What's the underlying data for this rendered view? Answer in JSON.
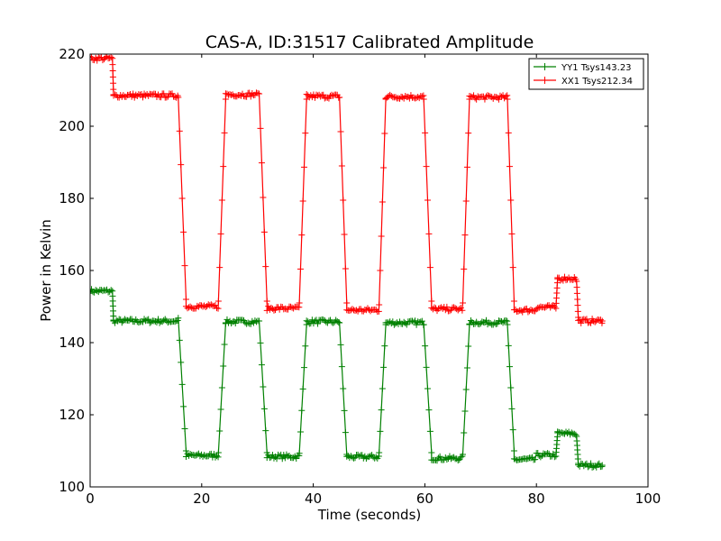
{
  "chart_data": {
    "type": "line",
    "title": "CAS-A, ID:31517 Calibrated Amplitude",
    "xlabel": "Time (seconds)",
    "ylabel": "Power in Kelvin",
    "xlim": [
      0,
      100
    ],
    "ylim": [
      100,
      220
    ],
    "xticks": [
      0,
      20,
      40,
      60,
      80,
      100
    ],
    "yticks": [
      100,
      120,
      140,
      160,
      180,
      200,
      220
    ],
    "grid": false,
    "legend_position": "top-right",
    "marker": "plus",
    "series": [
      {
        "name": "YY1 Tsys143.23",
        "color": "#008000",
        "segments": [
          {
            "x_start": 0.0,
            "x_end": 4.0,
            "level": 154.3,
            "noise": 0.6
          },
          {
            "x_start": 4.0,
            "x_end": 4.2,
            "y_start": 154.3,
            "y_end": 146.0
          },
          {
            "x_start": 4.2,
            "x_end": 15.8,
            "level": 146.0,
            "noise": 0.6
          },
          {
            "x_start": 15.8,
            "x_end": 17.2,
            "y_start": 146.8,
            "y_end": 110.0
          },
          {
            "x_start": 17.2,
            "x_end": 23.0,
            "level": 108.7,
            "noise": 0.6
          },
          {
            "x_start": 23.0,
            "x_end": 24.3,
            "y_start": 109.5,
            "y_end": 145.5
          },
          {
            "x_start": 24.3,
            "x_end": 30.3,
            "level": 145.8,
            "noise": 0.6
          },
          {
            "x_start": 30.3,
            "x_end": 31.7,
            "y_start": 146.0,
            "y_end": 109.5
          },
          {
            "x_start": 31.7,
            "x_end": 37.5,
            "level": 108.4,
            "noise": 0.6
          },
          {
            "x_start": 37.5,
            "x_end": 38.8,
            "y_start": 109.3,
            "y_end": 145.0
          },
          {
            "x_start": 38.8,
            "x_end": 44.7,
            "level": 145.8,
            "noise": 0.6
          },
          {
            "x_start": 44.7,
            "x_end": 46.0,
            "y_start": 145.5,
            "y_end": 109.0
          },
          {
            "x_start": 46.0,
            "x_end": 51.8,
            "level": 108.3,
            "noise": 0.6
          },
          {
            "x_start": 51.8,
            "x_end": 53.0,
            "y_start": 109.5,
            "y_end": 145.0
          },
          {
            "x_start": 53.0,
            "x_end": 59.8,
            "level": 145.5,
            "noise": 0.6
          },
          {
            "x_start": 59.8,
            "x_end": 61.2,
            "y_start": 145.0,
            "y_end": 109.5
          },
          {
            "x_start": 61.2,
            "x_end": 66.8,
            "level": 107.9,
            "noise": 0.6
          },
          {
            "x_start": 66.8,
            "x_end": 68.0,
            "y_start": 109.0,
            "y_end": 145.0
          },
          {
            "x_start": 68.0,
            "x_end": 74.8,
            "level": 145.6,
            "noise": 0.6
          },
          {
            "x_start": 74.8,
            "x_end": 76.0,
            "y_start": 145.0,
            "y_end": 110.0
          },
          {
            "x_start": 76.0,
            "x_end": 80.0,
            "level": 107.6,
            "noise": 0.6
          },
          {
            "x_start": 80.0,
            "x_end": 83.5,
            "level": 108.8,
            "noise": 0.6
          },
          {
            "x_start": 83.5,
            "x_end": 83.8,
            "y_start": 108.5,
            "y_end": 115.0
          },
          {
            "x_start": 83.8,
            "x_end": 87.2,
            "level": 114.8,
            "noise": 0.6
          },
          {
            "x_start": 87.2,
            "x_end": 87.5,
            "y_start": 114.0,
            "y_end": 106.5
          },
          {
            "x_start": 87.5,
            "x_end": 91.8,
            "level": 106.0,
            "noise": 0.6
          }
        ]
      },
      {
        "name": "XX1 Tsys212.34",
        "color": "#ff0000",
        "segments": [
          {
            "x_start": 0.0,
            "x_end": 4.0,
            "level": 218.8,
            "noise": 0.6
          },
          {
            "x_start": 4.0,
            "x_end": 4.2,
            "y_start": 218.8,
            "y_end": 208.5
          },
          {
            "x_start": 4.2,
            "x_end": 15.8,
            "level": 208.5,
            "noise": 0.6
          },
          {
            "x_start": 15.8,
            "x_end": 17.2,
            "y_start": 208.0,
            "y_end": 152.0
          },
          {
            "x_start": 17.2,
            "x_end": 23.0,
            "level": 150.0,
            "noise": 0.6
          },
          {
            "x_start": 23.0,
            "x_end": 24.3,
            "y_start": 151.5,
            "y_end": 207.5
          },
          {
            "x_start": 24.3,
            "x_end": 30.3,
            "level": 208.8,
            "noise": 0.6
          },
          {
            "x_start": 30.3,
            "x_end": 31.7,
            "y_start": 209.0,
            "y_end": 151.5
          },
          {
            "x_start": 31.7,
            "x_end": 37.5,
            "level": 149.5,
            "noise": 0.6
          },
          {
            "x_start": 37.5,
            "x_end": 38.8,
            "y_start": 151.0,
            "y_end": 207.5
          },
          {
            "x_start": 38.8,
            "x_end": 44.7,
            "level": 208.3,
            "noise": 0.6
          },
          {
            "x_start": 44.7,
            "x_end": 46.0,
            "y_start": 208.0,
            "y_end": 151.0
          },
          {
            "x_start": 46.0,
            "x_end": 51.8,
            "level": 149.0,
            "noise": 0.6
          },
          {
            "x_start": 51.8,
            "x_end": 53.0,
            "y_start": 150.5,
            "y_end": 207.5
          },
          {
            "x_start": 53.0,
            "x_end": 59.8,
            "level": 208.2,
            "noise": 0.6
          },
          {
            "x_start": 59.8,
            "x_end": 61.2,
            "y_start": 207.5,
            "y_end": 151.5
          },
          {
            "x_start": 61.2,
            "x_end": 66.8,
            "level": 149.3,
            "noise": 0.6
          },
          {
            "x_start": 66.8,
            "x_end": 68.0,
            "y_start": 151.0,
            "y_end": 207.5
          },
          {
            "x_start": 68.0,
            "x_end": 74.8,
            "level": 208.0,
            "noise": 0.6
          },
          {
            "x_start": 74.8,
            "x_end": 76.0,
            "y_start": 207.5,
            "y_end": 151.5
          },
          {
            "x_start": 76.0,
            "x_end": 80.0,
            "level": 149.0,
            "noise": 0.6
          },
          {
            "x_start": 80.0,
            "x_end": 83.5,
            "level": 149.8,
            "noise": 0.6
          },
          {
            "x_start": 83.5,
            "x_end": 83.8,
            "y_start": 149.5,
            "y_end": 158.0
          },
          {
            "x_start": 83.8,
            "x_end": 87.2,
            "level": 157.8,
            "noise": 0.6
          },
          {
            "x_start": 87.2,
            "x_end": 87.5,
            "y_start": 157.0,
            "y_end": 147.0
          },
          {
            "x_start": 87.5,
            "x_end": 91.8,
            "level": 146.0,
            "noise": 0.6
          }
        ]
      }
    ]
  }
}
